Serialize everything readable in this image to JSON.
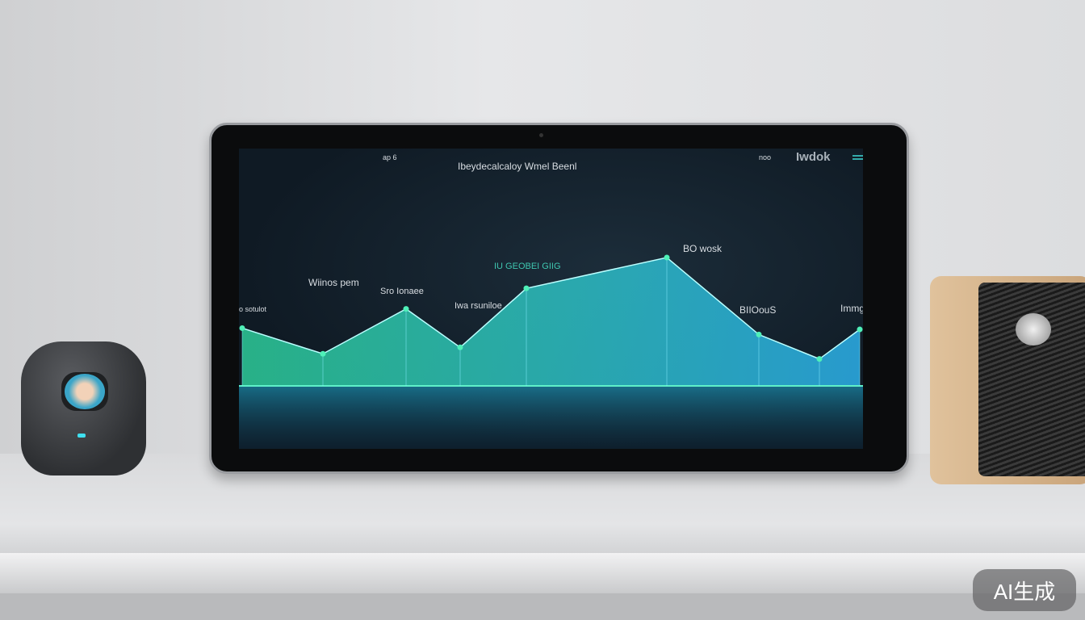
{
  "screen": {
    "top_left": "ap 6",
    "title": "Ibeydecalcaloy Wmel Beenl",
    "top_right_small": "noo",
    "top_right_brand": "Iwdok",
    "labels": [
      "Wiinos pem",
      "Sro Ionaee",
      "o sotulot",
      "Iwa rsuniloe",
      "IU GEOBEI GIIG",
      "BO wosk",
      "BIIOouS",
      "Immgloo"
    ]
  },
  "chart_data": {
    "type": "area",
    "values": [
      45,
      25,
      60,
      30,
      76,
      100,
      40,
      21,
      44
    ],
    "colors": {
      "start": "#2fd6a0",
      "end": "#2aa8e0"
    }
  },
  "watermark": "AI生成"
}
